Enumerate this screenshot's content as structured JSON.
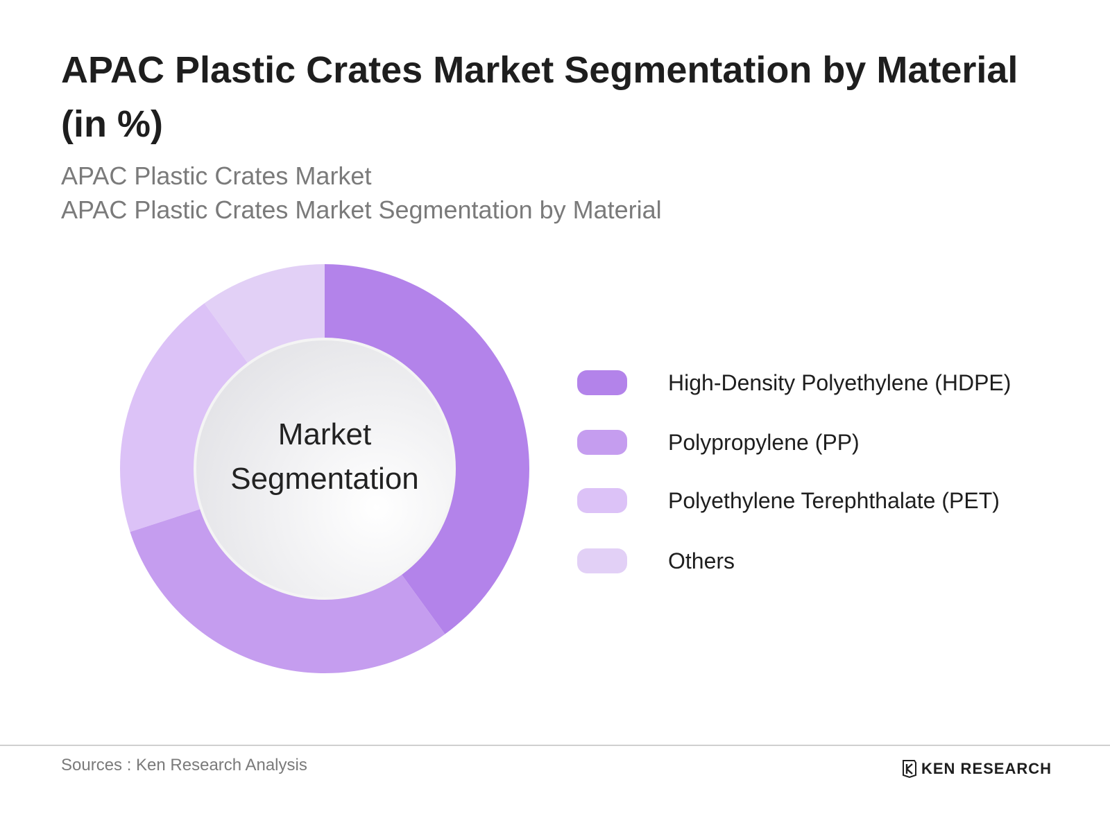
{
  "title": "APAC Plastic Crates Market Segmentation by Material (in %)",
  "subtitle_lines": [
    "APAC Plastic Crates Market",
    "APAC Plastic Crates Market Segmentation by Material"
  ],
  "center_label": {
    "line1": "Market",
    "line2": "Segmentation"
  },
  "chart_data": {
    "type": "pie",
    "style": "donut",
    "categories": [
      "High-Density Polyethylene (HDPE)",
      "Polypropylene (PP)",
      "Polyethylene Terephthalate (PET)",
      "Others"
    ],
    "values": [
      40,
      30,
      20,
      10
    ],
    "colors": [
      "#b383ea",
      "#c59def",
      "#dcc2f7",
      "#e2d0f6"
    ],
    "legend_position": "right"
  },
  "footer": {
    "source": "Sources : Ken Research Analysis",
    "brand": "KEN RESEARCH",
    "brand_icon": "ken-research-logo-icon"
  }
}
